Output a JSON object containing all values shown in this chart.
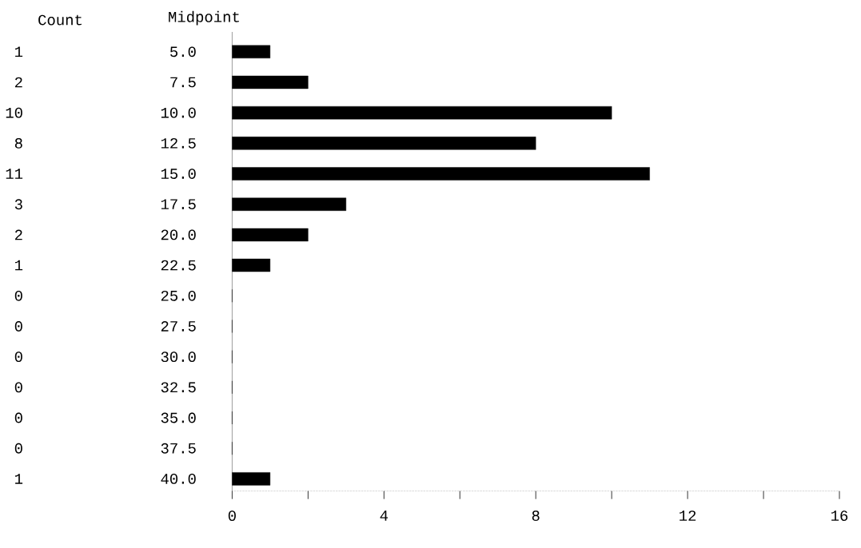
{
  "chart_data": {
    "type": "bar",
    "orientation": "horizontal",
    "ylabel": "Midpoint",
    "annotations": [
      "Count"
    ],
    "categories": [
      "5.0",
      "7.5",
      "10.0",
      "12.5",
      "15.0",
      "17.5",
      "20.0",
      "22.5",
      "25.0",
      "27.5",
      "30.0",
      "32.5",
      "35.0",
      "37.5",
      "40.0"
    ],
    "values": [
      1,
      2,
      10,
      8,
      11,
      3,
      2,
      1,
      0,
      0,
      0,
      0,
      0,
      0,
      1
    ],
    "color": "#000000",
    "data_labels": true,
    "xlim": [
      0,
      16
    ],
    "xticks": [
      0,
      {
        "value": 2,
        "label": null
      },
      4,
      {
        "value": 6,
        "label": null
      },
      8,
      {
        "value": 10,
        "label": null
      },
      12,
      {
        "value": 14,
        "label": null
      },
      16
    ]
  }
}
